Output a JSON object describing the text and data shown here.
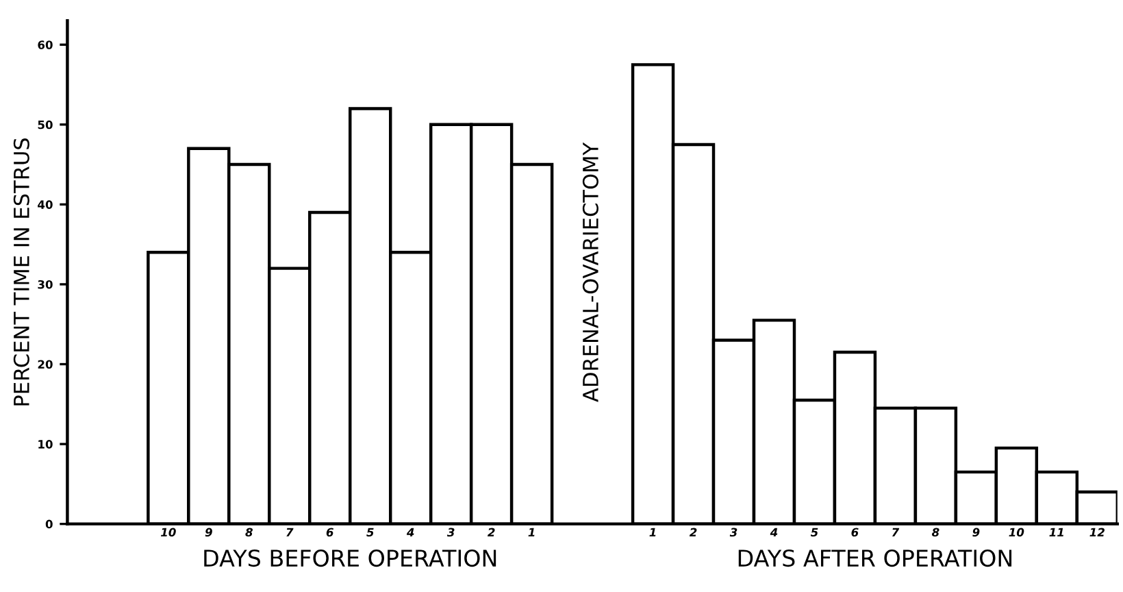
{
  "chart_data": {
    "type": "bar",
    "categories": [
      null,
      null,
      "10",
      "9",
      "8",
      "7",
      "6",
      "5",
      "4",
      "3",
      "2",
      "1",
      null,
      null,
      "1",
      "2",
      "3",
      "4",
      "5",
      "6",
      "7",
      "8",
      "9",
      "10",
      "11",
      "12"
    ],
    "values": [
      null,
      null,
      34,
      47,
      45,
      32,
      39,
      52,
      34,
      50,
      50,
      45,
      null,
      null,
      57.5,
      47.5,
      23,
      25.5,
      15.5,
      21.5,
      14.5,
      14.5,
      6.5,
      9.5,
      6.5,
      4
    ],
    "color": "#ffffff",
    "ylabel": "PERCENT TIME IN ESTRUS",
    "ylim": [
      0,
      63
    ],
    "yticks": [
      0,
      10,
      20,
      30,
      40,
      50,
      60
    ],
    "annotations": [
      "DAYS BEFORE OPERATION",
      "ADRENAL-OVARIECTOMY",
      "DAYS AFTER OPERATION"
    ],
    "grid": false,
    "legend": false
  }
}
